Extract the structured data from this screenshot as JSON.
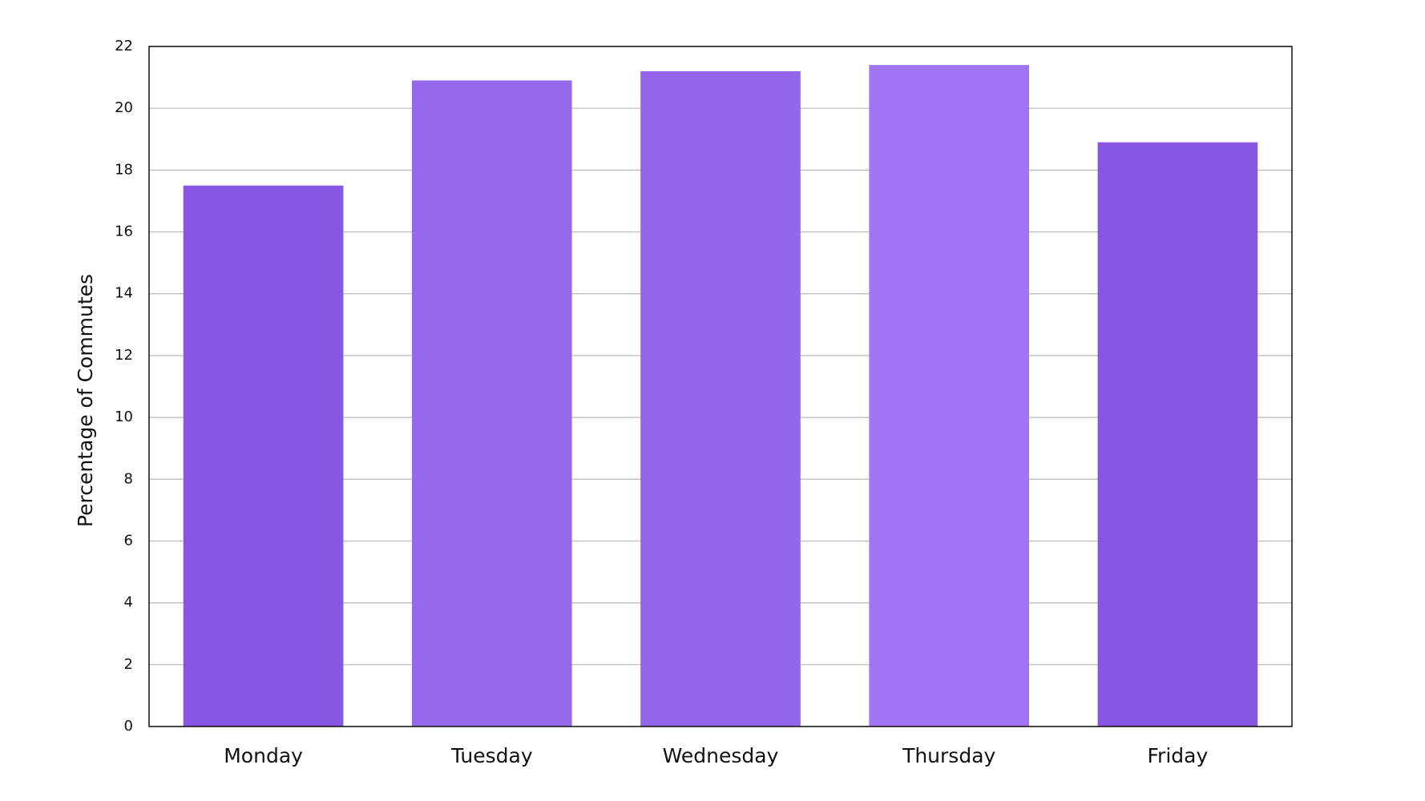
{
  "chart_data": {
    "type": "bar",
    "y_label": "Percentage of Commutes",
    "categories": [
      "Monday",
      "Tuesday",
      "Wednesday",
      "Thursday",
      "Friday"
    ],
    "values": [
      17.5,
      20.9,
      21.2,
      21.4,
      18.9
    ],
    "colors": [
      "#8757e0",
      "#9668ec",
      "#9466eb",
      "#a274f5",
      "#8757e0"
    ],
    "ylim": [
      0,
      22
    ],
    "yticks": [
      0,
      2,
      4,
      6,
      8,
      10,
      12,
      14,
      16,
      18,
      20,
      22
    ],
    "grid": true
  }
}
